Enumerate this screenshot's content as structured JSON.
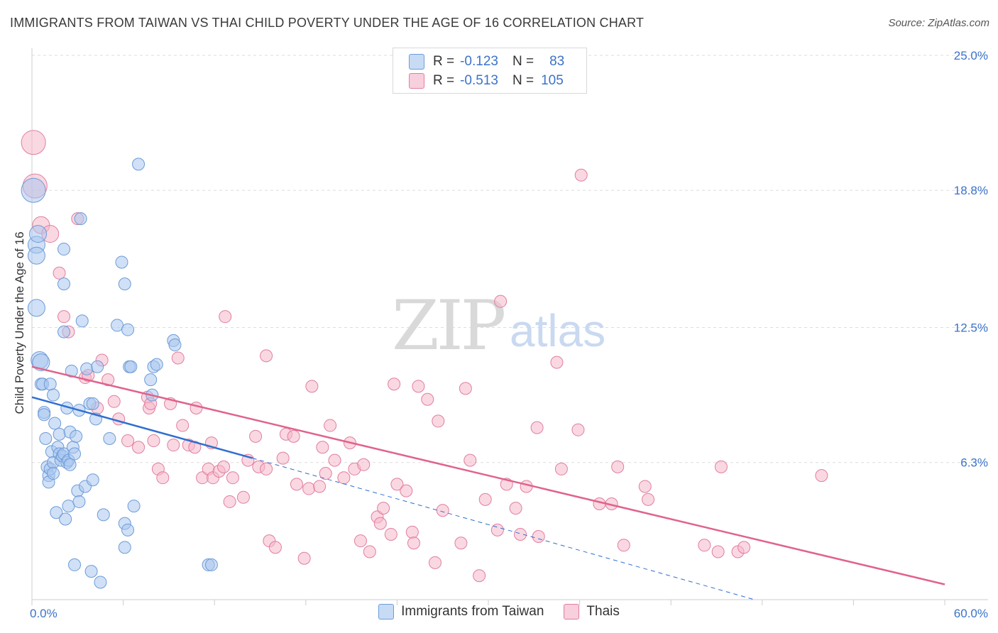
{
  "title": "IMMIGRANTS FROM TAIWAN VS THAI CHILD POVERTY UNDER THE AGE OF 16 CORRELATION CHART",
  "source": "Source: ZipAtlas.com",
  "colors": {
    "blue_fill": "#a9c6ee",
    "blue_stroke": "#6d9bd8",
    "blue_line": "#2f6fd0",
    "pink_fill": "#f5b8cb",
    "pink_stroke": "#e07ea0",
    "pink_line": "#e0638c",
    "axis_label": "#3b73c8",
    "grid": "#dddddd",
    "watermark": "#d9d9d9"
  },
  "legend": {
    "r_label": "R =",
    "n_label": "N =",
    "series": [
      {
        "name": "Immigrants from Taiwan",
        "r": "-0.123",
        "n": "83"
      },
      {
        "name": "Thais",
        "r": "-0.513",
        "n": "105"
      }
    ]
  },
  "watermark": {
    "part1": "ZIP",
    "part2": "atlas"
  },
  "chart_data": {
    "type": "scatter",
    "title": "IMMIGRANTS FROM TAIWAN VS THAI CHILD POVERTY UNDER THE AGE OF 16 CORRELATION CHART",
    "xlabel": "",
    "ylabel": "Child Poverty Under the Age of 16",
    "xlim": [
      0,
      60
    ],
    "ylim": [
      0,
      25
    ],
    "x_tick_labels": [
      "0.0%",
      "60.0%"
    ],
    "y_ticks": [
      6.3,
      12.5,
      18.8,
      25.0
    ],
    "y_tick_labels": [
      "6.3%",
      "12.5%",
      "18.8%",
      "25.0%"
    ],
    "grid": true,
    "series": [
      {
        "name": "Immigrants from Taiwan",
        "color": "blue",
        "trend": {
          "x": [
            0,
            14.5
          ],
          "y": [
            9.3,
            6.5
          ]
        },
        "trend_dashed": {
          "x": [
            14.5,
            47.5
          ],
          "y": [
            6.5,
            0
          ]
        },
        "points": [
          [
            0.1,
            18.8,
            3
          ],
          [
            0.3,
            13.4,
            2
          ],
          [
            0.3,
            16.3,
            2
          ],
          [
            0.3,
            15.8,
            2
          ],
          [
            0.4,
            16.8,
            2
          ],
          [
            0.5,
            11.0,
            2
          ],
          [
            0.6,
            10.9,
            2
          ],
          [
            0.6,
            9.9,
            1
          ],
          [
            0.7,
            9.9,
            1
          ],
          [
            0.8,
            8.6,
            1
          ],
          [
            0.8,
            8.5,
            1
          ],
          [
            0.9,
            7.4,
            1
          ],
          [
            1.0,
            6.1,
            1
          ],
          [
            1.1,
            5.7,
            1
          ],
          [
            1.1,
            5.4,
            1
          ],
          [
            1.2,
            6.0,
            1
          ],
          [
            1.2,
            9.9,
            1
          ],
          [
            1.3,
            6.8,
            1
          ],
          [
            1.4,
            6.3,
            1
          ],
          [
            1.4,
            9.4,
            1
          ],
          [
            1.4,
            5.8,
            1
          ],
          [
            1.5,
            8.1,
            1
          ],
          [
            1.6,
            4.0,
            1
          ],
          [
            1.7,
            7.0,
            1
          ],
          [
            1.8,
            7.6,
            1
          ],
          [
            1.8,
            6.7,
            1
          ],
          [
            1.9,
            6.4,
            1
          ],
          [
            2.0,
            6.6,
            1
          ],
          [
            2.1,
            16.1,
            1
          ],
          [
            2.1,
            14.5,
            1
          ],
          [
            2.1,
            12.3,
            1
          ],
          [
            2.1,
            6.7,
            1
          ],
          [
            2.2,
            3.7,
            1
          ],
          [
            2.3,
            8.8,
            1
          ],
          [
            2.3,
            6.3,
            1
          ],
          [
            2.4,
            4.3,
            1
          ],
          [
            2.4,
            6.4,
            1
          ],
          [
            2.5,
            6.2,
            1
          ],
          [
            2.5,
            7.7,
            1
          ],
          [
            2.6,
            10.5,
            1
          ],
          [
            2.7,
            7.0,
            1
          ],
          [
            2.8,
            1.6,
            1
          ],
          [
            2.8,
            6.7,
            1
          ],
          [
            2.9,
            7.5,
            1
          ],
          [
            3.0,
            5.0,
            1
          ],
          [
            3.1,
            4.5,
            1
          ],
          [
            3.1,
            8.7,
            1
          ],
          [
            3.2,
            17.5,
            1
          ],
          [
            3.3,
            12.8,
            1
          ],
          [
            3.5,
            5.2,
            1
          ],
          [
            3.6,
            10.6,
            1
          ],
          [
            3.8,
            9.0,
            1
          ],
          [
            3.9,
            1.3,
            1
          ],
          [
            4.0,
            9.0,
            1
          ],
          [
            4.0,
            5.5,
            1
          ],
          [
            4.2,
            8.3,
            1
          ],
          [
            4.3,
            10.7,
            1
          ],
          [
            4.5,
            0.8,
            1
          ],
          [
            4.7,
            3.9,
            1
          ],
          [
            5.1,
            7.4,
            1
          ],
          [
            5.6,
            12.6,
            1
          ],
          [
            5.9,
            15.5,
            1
          ],
          [
            6.1,
            14.5,
            1
          ],
          [
            6.1,
            2.4,
            1
          ],
          [
            6.1,
            3.5,
            1
          ],
          [
            6.3,
            3.2,
            1
          ],
          [
            6.3,
            12.4,
            1
          ],
          [
            6.4,
            10.7,
            1
          ],
          [
            6.5,
            10.7,
            1
          ],
          [
            6.7,
            4.3,
            1
          ],
          [
            7.0,
            20.0,
            1
          ],
          [
            7.8,
            10.1,
            1
          ],
          [
            7.9,
            9.4,
            1
          ],
          [
            8.0,
            10.7,
            1
          ],
          [
            8.2,
            10.8,
            1
          ],
          [
            9.3,
            11.9,
            1
          ],
          [
            9.4,
            11.7,
            1
          ],
          [
            11.6,
            1.6,
            1
          ],
          [
            11.8,
            1.6,
            1
          ]
        ]
      },
      {
        "name": "Thais",
        "color": "pink",
        "trend": {
          "x": [
            0,
            60
          ],
          "y": [
            10.7,
            0.7
          ]
        },
        "points": [
          [
            0.1,
            21.0,
            3
          ],
          [
            0.2,
            19.0,
            3
          ],
          [
            0.6,
            17.2,
            2
          ],
          [
            1.2,
            16.8,
            2
          ],
          [
            1.8,
            15.0,
            1
          ],
          [
            2.1,
            13.0,
            1
          ],
          [
            2.4,
            12.3,
            1
          ],
          [
            3.0,
            17.5,
            1
          ],
          [
            3.5,
            10.2,
            1
          ],
          [
            3.7,
            10.3,
            1
          ],
          [
            4.3,
            8.8,
            1
          ],
          [
            4.6,
            11.0,
            1
          ],
          [
            5.0,
            10.1,
            1
          ],
          [
            5.4,
            9.1,
            1
          ],
          [
            5.7,
            8.3,
            1
          ],
          [
            6.3,
            7.3,
            1
          ],
          [
            7.0,
            7.0,
            1
          ],
          [
            7.6,
            9.3,
            1
          ],
          [
            7.7,
            8.8,
            1
          ],
          [
            7.8,
            9.0,
            1
          ],
          [
            8.0,
            7.3,
            1
          ],
          [
            8.3,
            6.0,
            1
          ],
          [
            8.6,
            5.6,
            1
          ],
          [
            9.1,
            9.0,
            1
          ],
          [
            9.3,
            7.1,
            1
          ],
          [
            9.6,
            11.1,
            1
          ],
          [
            9.9,
            8.0,
            1
          ],
          [
            10.3,
            7.1,
            1
          ],
          [
            10.7,
            7.0,
            1
          ],
          [
            10.8,
            8.8,
            1
          ],
          [
            11.2,
            5.6,
            1
          ],
          [
            11.6,
            6.0,
            1
          ],
          [
            11.8,
            7.2,
            1
          ],
          [
            11.9,
            5.6,
            1
          ],
          [
            12.3,
            5.9,
            1
          ],
          [
            12.6,
            6.1,
            1
          ],
          [
            12.7,
            13.0,
            1
          ],
          [
            13.0,
            4.5,
            1
          ],
          [
            13.2,
            5.6,
            1
          ],
          [
            13.9,
            4.7,
            1
          ],
          [
            14.2,
            6.4,
            1
          ],
          [
            14.7,
            7.5,
            1
          ],
          [
            14.9,
            6.1,
            1
          ],
          [
            15.4,
            6.0,
            1
          ],
          [
            15.4,
            11.2,
            1
          ],
          [
            15.6,
            2.7,
            1
          ],
          [
            16.0,
            2.4,
            1
          ],
          [
            16.5,
            6.5,
            1
          ],
          [
            16.7,
            7.6,
            1
          ],
          [
            17.2,
            7.5,
            1
          ],
          [
            17.4,
            5.3,
            1
          ],
          [
            17.9,
            1.9,
            1
          ],
          [
            18.2,
            5.1,
            1
          ],
          [
            18.4,
            9.8,
            1
          ],
          [
            18.9,
            5.2,
            1
          ],
          [
            19.1,
            7.0,
            1
          ],
          [
            19.3,
            5.8,
            1
          ],
          [
            19.6,
            8.0,
            1
          ],
          [
            19.9,
            6.4,
            1
          ],
          [
            20.5,
            5.6,
            1
          ],
          [
            20.9,
            7.2,
            1
          ],
          [
            21.2,
            6.0,
            1
          ],
          [
            21.6,
            2.7,
            1
          ],
          [
            21.8,
            6.2,
            1
          ],
          [
            22.2,
            2.2,
            1
          ],
          [
            22.7,
            3.8,
            1
          ],
          [
            22.9,
            3.5,
            1
          ],
          [
            23.1,
            4.2,
            1
          ],
          [
            23.6,
            3.0,
            1
          ],
          [
            23.8,
            9.9,
            1
          ],
          [
            24.0,
            5.3,
            1
          ],
          [
            24.6,
            5.0,
            1
          ],
          [
            25.0,
            3.1,
            1
          ],
          [
            25.1,
            2.6,
            1
          ],
          [
            25.4,
            9.8,
            1
          ],
          [
            26.0,
            9.2,
            1
          ],
          [
            26.5,
            1.7,
            1
          ],
          [
            26.7,
            8.2,
            1
          ],
          [
            27.0,
            4.1,
            1
          ],
          [
            28.2,
            2.6,
            1
          ],
          [
            28.5,
            9.7,
            1
          ],
          [
            28.8,
            6.4,
            1
          ],
          [
            29.4,
            1.1,
            1
          ],
          [
            29.8,
            4.6,
            1
          ],
          [
            30.6,
            3.2,
            1
          ],
          [
            30.8,
            13.7,
            1
          ],
          [
            31.2,
            5.3,
            1
          ],
          [
            31.8,
            4.2,
            1
          ],
          [
            32.1,
            3.0,
            1
          ],
          [
            32.5,
            5.2,
            1
          ],
          [
            33.2,
            7.9,
            1
          ],
          [
            33.3,
            2.9,
            1
          ],
          [
            34.5,
            10.9,
            1
          ],
          [
            34.8,
            6.0,
            1
          ],
          [
            35.9,
            7.8,
            1
          ],
          [
            36.1,
            19.5,
            1
          ],
          [
            37.3,
            4.4,
            1
          ],
          [
            38.1,
            4.4,
            1
          ],
          [
            38.5,
            6.1,
            1
          ],
          [
            38.9,
            2.5,
            1
          ],
          [
            40.3,
            5.2,
            1
          ],
          [
            40.5,
            4.6,
            1
          ],
          [
            44.2,
            2.5,
            1
          ],
          [
            45.1,
            2.2,
            1
          ],
          [
            45.3,
            6.1,
            1
          ],
          [
            46.4,
            2.2,
            1
          ],
          [
            46.8,
            2.4,
            1
          ],
          [
            51.9,
            5.7,
            1
          ]
        ]
      }
    ]
  }
}
